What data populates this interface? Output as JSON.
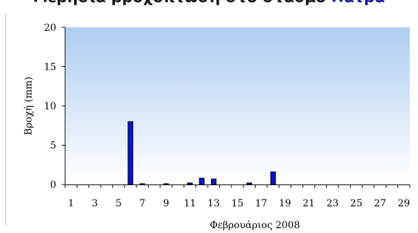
{
  "chart_data": {
    "type": "bar",
    "title_main": "Μερήσια βροχόπτωση στο σταθμό ",
    "title_accent": "Πάτρα",
    "xlabel": "Φεβρουάριος 2008",
    "ylabel": "Βροχή (mm)",
    "ylim": [
      0,
      20
    ],
    "yticks": [
      0,
      5,
      10,
      15,
      20
    ],
    "xlim": [
      1,
      29
    ],
    "xtick_labels": [
      "1",
      "3",
      "5",
      "7",
      "9",
      "11",
      "13",
      "15",
      "17",
      "19",
      "21",
      "23",
      "25",
      "27",
      "29"
    ],
    "categories": [
      1,
      2,
      3,
      4,
      5,
      6,
      7,
      8,
      9,
      10,
      11,
      12,
      13,
      14,
      15,
      16,
      17,
      18,
      19,
      20,
      21,
      22,
      23,
      24,
      25,
      26,
      27,
      28,
      29
    ],
    "values": [
      0,
      0,
      0,
      0,
      0,
      8.0,
      0.1,
      0,
      0.1,
      0,
      0.2,
      0.8,
      0.7,
      0,
      0,
      0.2,
      0,
      1.6,
      0,
      0,
      0,
      0,
      0,
      0,
      0,
      0,
      0,
      0,
      0
    ],
    "bar_color": "#0a14c8",
    "plot_bg_top": "#aecdf0",
    "plot_bg_bottom": "#ffffff",
    "grid": false
  }
}
